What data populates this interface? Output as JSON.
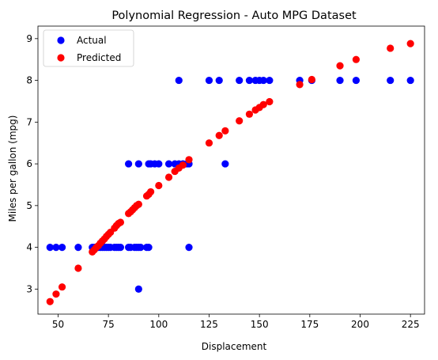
{
  "chart_data": {
    "type": "scatter",
    "title": "Polynomial Regression - Auto MPG Dataset",
    "xlabel": "Displacement",
    "ylabel": "Miles per gallon (mpg)",
    "xlim": [
      40,
      232
    ],
    "ylim": [
      2.4,
      9.3
    ],
    "xticks": [
      50,
      75,
      100,
      125,
      150,
      175,
      200,
      225
    ],
    "yticks": [
      3,
      4,
      5,
      6,
      7,
      8,
      9
    ],
    "grid": false,
    "legend": "top-left",
    "series": [
      {
        "name": "Actual",
        "color": "#0000ff",
        "points": [
          [
            46,
            4
          ],
          [
            49,
            4
          ],
          [
            52,
            4
          ],
          [
            60,
            4
          ],
          [
            67,
            4
          ],
          [
            68,
            4
          ],
          [
            69,
            4
          ],
          [
            70,
            4
          ],
          [
            71,
            4
          ],
          [
            72,
            4
          ],
          [
            73,
            4
          ],
          [
            74,
            4
          ],
          [
            75,
            4
          ],
          [
            76,
            4
          ],
          [
            78,
            4
          ],
          [
            79,
            4
          ],
          [
            80,
            4
          ],
          [
            81,
            4
          ],
          [
            85,
            4
          ],
          [
            86,
            4
          ],
          [
            88,
            4
          ],
          [
            89,
            4
          ],
          [
            90,
            4
          ],
          [
            91,
            4
          ],
          [
            94,
            4
          ],
          [
            95,
            4
          ],
          [
            115,
            4
          ],
          [
            90,
            3
          ],
          [
            85,
            6
          ],
          [
            90,
            6
          ],
          [
            95,
            6
          ],
          [
            96,
            6
          ],
          [
            98,
            6
          ],
          [
            100,
            6
          ],
          [
            105,
            6
          ],
          [
            108,
            6
          ],
          [
            110,
            6
          ],
          [
            112,
            6
          ],
          [
            114,
            6
          ],
          [
            115,
            6
          ],
          [
            133,
            6
          ],
          [
            110,
            8
          ],
          [
            125,
            8
          ],
          [
            130,
            8
          ],
          [
            140,
            8
          ],
          [
            145,
            8
          ],
          [
            148,
            8
          ],
          [
            150,
            8
          ],
          [
            152,
            8
          ],
          [
            155,
            8
          ],
          [
            170,
            8
          ],
          [
            176,
            8
          ],
          [
            190,
            8
          ],
          [
            198,
            8
          ],
          [
            215,
            8
          ],
          [
            225,
            8
          ]
        ]
      },
      {
        "name": "Predicted",
        "color": "#ff0000",
        "points": [
          [
            46,
            2.7
          ],
          [
            49,
            2.88
          ],
          [
            52,
            3.05
          ],
          [
            60,
            3.5
          ],
          [
            67,
            3.89
          ],
          [
            68,
            3.94
          ],
          [
            69,
            4.0
          ],
          [
            70,
            4.04
          ],
          [
            71,
            4.1
          ],
          [
            72,
            4.15
          ],
          [
            73,
            4.2
          ],
          [
            74,
            4.26
          ],
          [
            75,
            4.31
          ],
          [
            76,
            4.36
          ],
          [
            78,
            4.46
          ],
          [
            79,
            4.52
          ],
          [
            80,
            4.57
          ],
          [
            81,
            4.6
          ],
          [
            85,
            4.81
          ],
          [
            86,
            4.85
          ],
          [
            87,
            4.9
          ],
          [
            88,
            4.95
          ],
          [
            89,
            5.0
          ],
          [
            90,
            5.03
          ],
          [
            94,
            5.23
          ],
          [
            95,
            5.27
          ],
          [
            96,
            5.33
          ],
          [
            100,
            5.48
          ],
          [
            105,
            5.68
          ],
          [
            108,
            5.82
          ],
          [
            110,
            5.9
          ],
          [
            112,
            5.97
          ],
          [
            115,
            6.1
          ],
          [
            125,
            6.5
          ],
          [
            130,
            6.68
          ],
          [
            133,
            6.79
          ],
          [
            140,
            7.03
          ],
          [
            145,
            7.19
          ],
          [
            148,
            7.29
          ],
          [
            150,
            7.35
          ],
          [
            152,
            7.42
          ],
          [
            155,
            7.49
          ],
          [
            170,
            7.9
          ],
          [
            176,
            8.02
          ],
          [
            190,
            8.35
          ],
          [
            198,
            8.5
          ],
          [
            215,
            8.77
          ],
          [
            225,
            8.88
          ]
        ]
      }
    ]
  }
}
